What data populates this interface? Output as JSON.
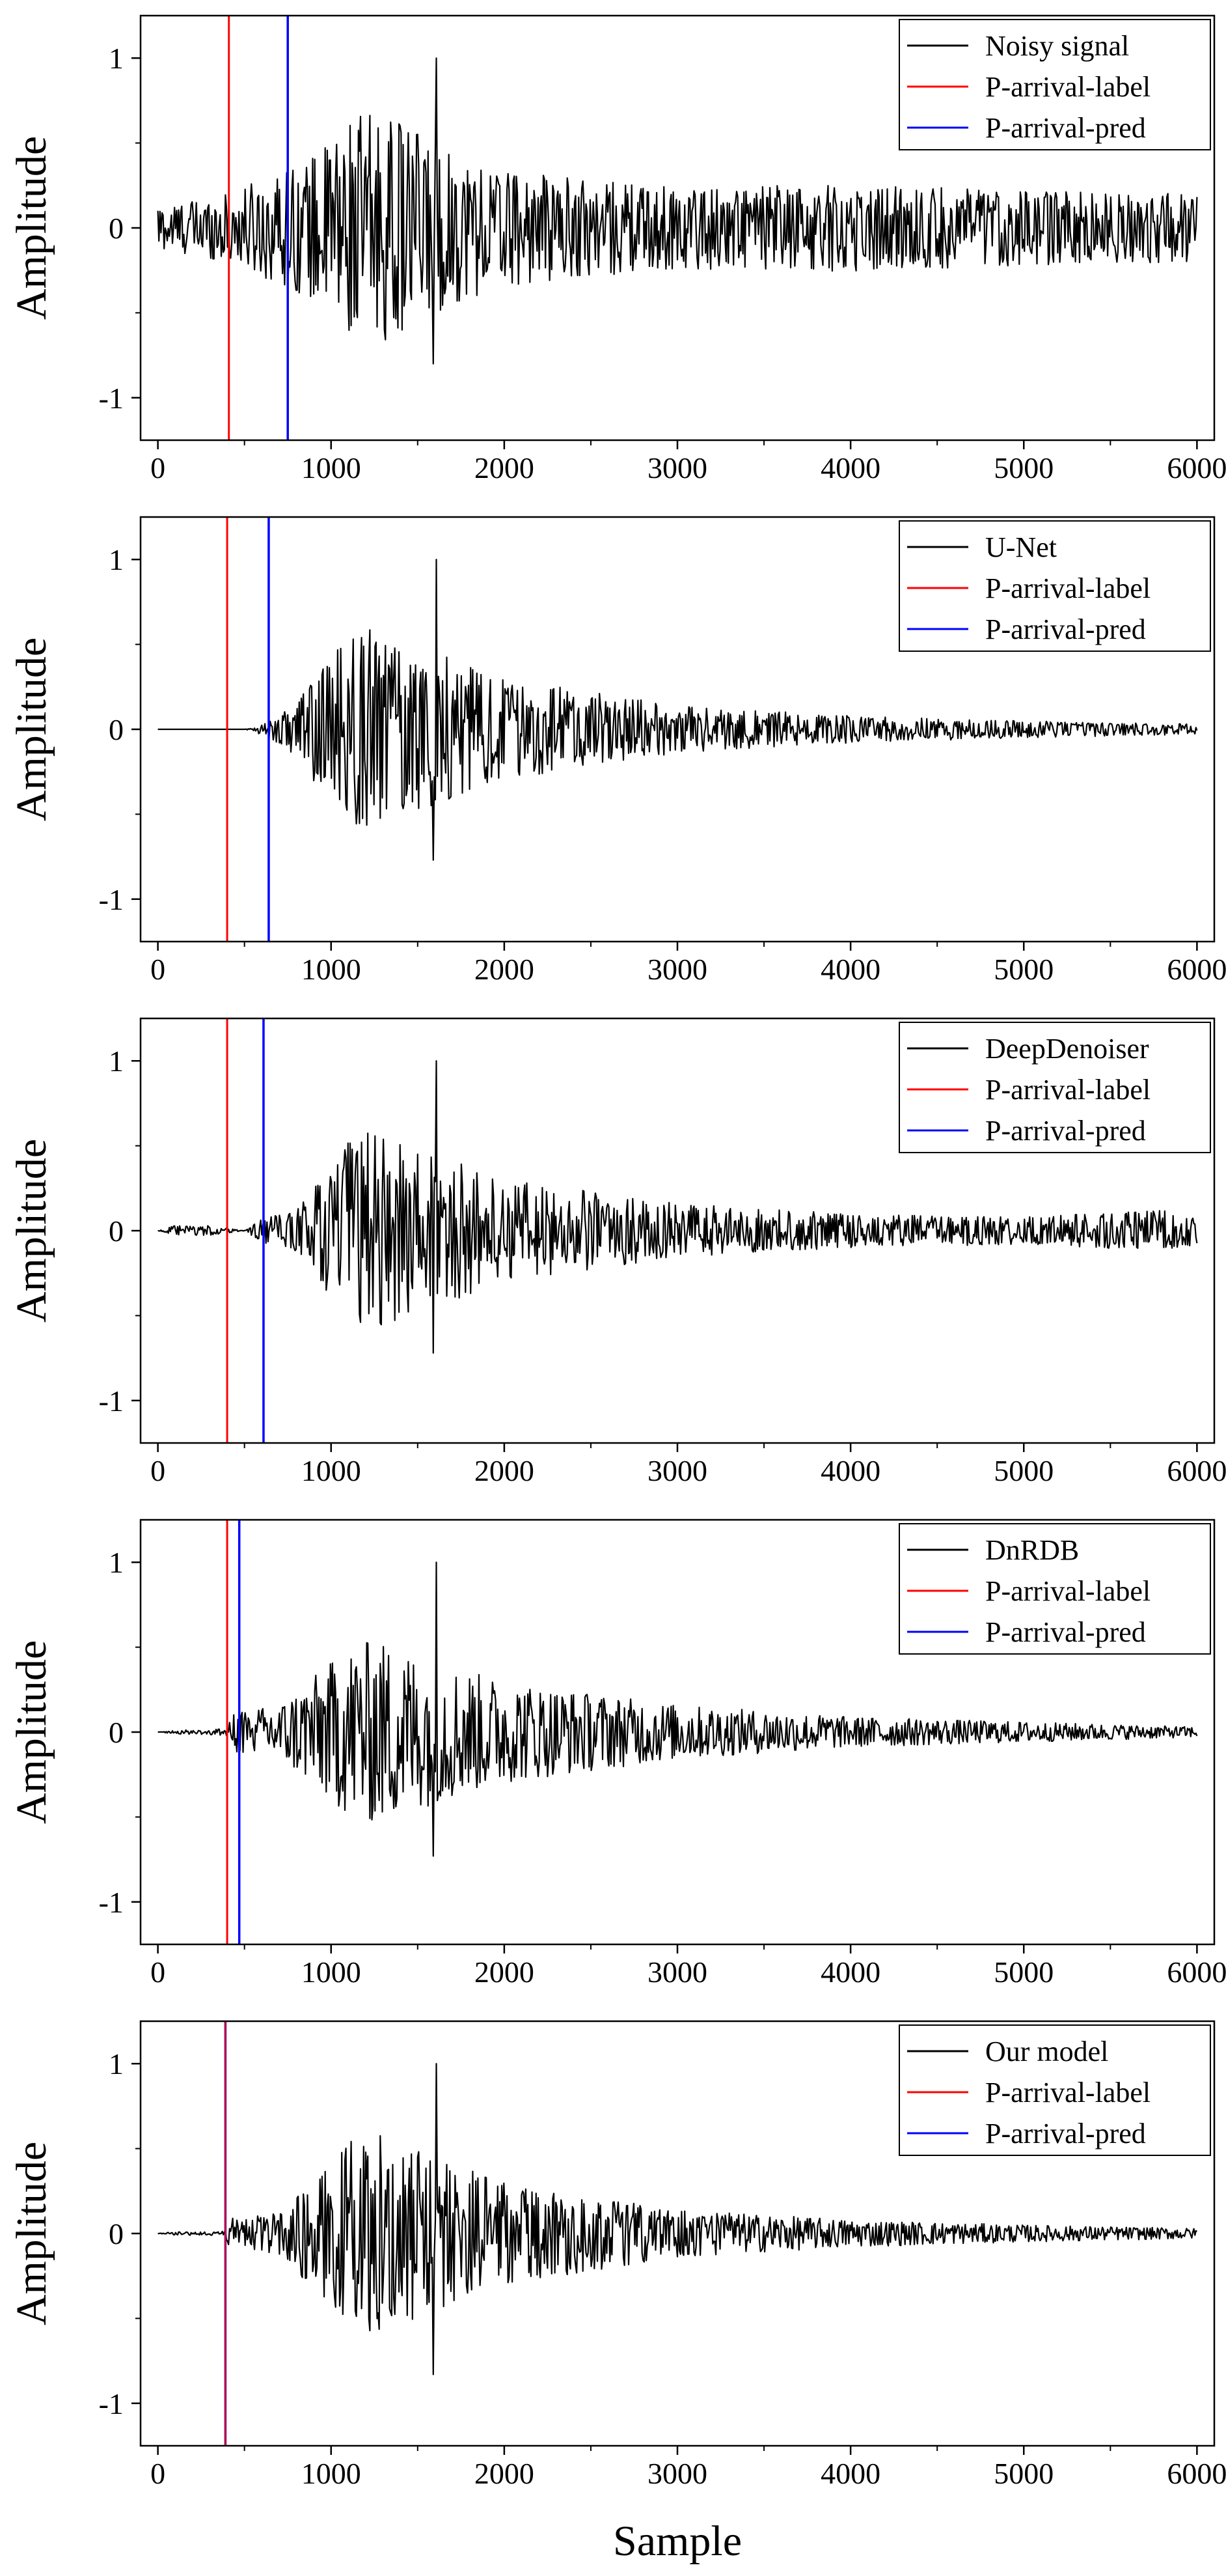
{
  "figure": {
    "xlabel": "Sample",
    "ylabel": "Amplitude",
    "xlim": [
      -100,
      6100
    ],
    "ylim": [
      -1.25,
      1.25
    ],
    "xticks": [
      0,
      1000,
      2000,
      3000,
      4000,
      5000,
      6000
    ],
    "yticks": [
      1,
      0,
      -1
    ],
    "colors": {
      "signal": "#000000",
      "label": "#ff0000",
      "pred": "#0000ff"
    }
  },
  "chart_data": [
    {
      "type": "line",
      "title": "",
      "xlabel": "",
      "ylabel": "Amplitude",
      "legend": [
        "Noisy signal",
        "P-arrival-label",
        "P-arrival-pred"
      ],
      "p_arrival_label": 410,
      "p_arrival_pred": 750,
      "envelope": {
        "samples": [
          0,
          400,
          900,
          1100,
          1250,
          1600,
          2000,
          3000,
          4000,
          5000,
          6000
        ],
        "amplitudes": [
          0.13,
          0.2,
          0.42,
          0.62,
          0.7,
          0.5,
          0.34,
          0.24,
          0.26,
          0.22,
          0.2
        ]
      },
      "peak": {
        "x": 1610,
        "y": 1.0
      },
      "ymin": -0.8
    },
    {
      "type": "line",
      "title": "",
      "xlabel": "",
      "ylabel": "Amplitude",
      "legend": [
        "U-Net",
        "P-arrival-label",
        "P-arrival-pred"
      ],
      "p_arrival_label": 400,
      "p_arrival_pred": 640,
      "envelope": {
        "samples": [
          0,
          500,
          550,
          750,
          1100,
          1250,
          1600,
          2000,
          3000,
          4000,
          5000,
          6000
        ],
        "amplitudes": [
          0.0,
          0.0,
          0.01,
          0.12,
          0.55,
          0.6,
          0.45,
          0.3,
          0.14,
          0.08,
          0.05,
          0.03
        ]
      },
      "peak": {
        "x": 1610,
        "y": 1.0
      },
      "ymin": -0.77
    },
    {
      "type": "line",
      "title": "",
      "xlabel": "",
      "ylabel": "Amplitude",
      "legend": [
        "DeepDenoiser",
        "P-arrival-label",
        "P-arrival-pred"
      ],
      "p_arrival_label": 400,
      "p_arrival_pred": 610,
      "envelope": {
        "samples": [
          0,
          100,
          300,
          500,
          600,
          800,
          1100,
          1250,
          1600,
          2000,
          3000,
          4000,
          5000,
          5800,
          6000
        ],
        "amplitudes": [
          0.0,
          0.03,
          0.03,
          0.0,
          0.07,
          0.12,
          0.55,
          0.6,
          0.45,
          0.3,
          0.16,
          0.1,
          0.08,
          0.12,
          0.08
        ]
      },
      "peak": {
        "x": 1610,
        "y": 1.0
      },
      "ymin": -0.72
    },
    {
      "type": "line",
      "title": "",
      "xlabel": "",
      "ylabel": "Amplitude",
      "legend": [
        "DnRDB",
        "P-arrival-label",
        "P-arrival-pred"
      ],
      "p_arrival_label": 400,
      "p_arrival_pred": 470,
      "envelope": {
        "samples": [
          0,
          100,
          380,
          450,
          700,
          1100,
          1250,
          1600,
          2000,
          3000,
          4000,
          5000,
          6000
        ],
        "amplitudes": [
          0.0,
          0.01,
          0.02,
          0.12,
          0.16,
          0.5,
          0.55,
          0.42,
          0.3,
          0.16,
          0.09,
          0.06,
          0.03
        ]
      },
      "peak": {
        "x": 1610,
        "y": 1.0
      },
      "ymin": -0.73
    },
    {
      "type": "line",
      "title": "",
      "xlabel": "Sample",
      "ylabel": "Amplitude",
      "legend": [
        "Our model",
        "P-arrival-label",
        "P-arrival-pred"
      ],
      "p_arrival_label": 390,
      "p_arrival_pred": 390,
      "envelope": {
        "samples": [
          0,
          100,
          370,
          420,
          700,
          1100,
          1250,
          1600,
          2000,
          3000,
          4000,
          5000,
          6000
        ],
        "amplitudes": [
          0.0,
          0.01,
          0.01,
          0.1,
          0.12,
          0.55,
          0.6,
          0.45,
          0.3,
          0.14,
          0.08,
          0.05,
          0.03
        ]
      },
      "peak": {
        "x": 1610,
        "y": 1.0
      },
      "ymin": -0.83
    }
  ]
}
